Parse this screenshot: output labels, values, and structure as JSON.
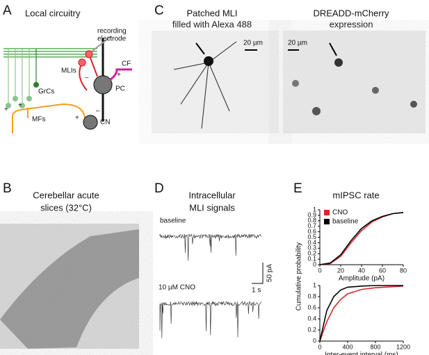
{
  "panel_a": {
    "letter": "A",
    "title": "Local circuitry",
    "recording": "recording",
    "electrode": "electrode",
    "mlis": "MLIs",
    "cf": "CF",
    "pc": "PC",
    "grcs": "GrCs",
    "mfs": "MFs",
    "cn": "CN",
    "plus": "+",
    "minus": "–"
  },
  "panel_b": {
    "letter": "B",
    "title": [
      "Cerebellar acute",
      "slices (32°C)"
    ]
  },
  "panel_c": {
    "letter": "C",
    "left_title": [
      "Patched MLI",
      "filled with Alexa 488"
    ],
    "right_title": [
      "DREADD-mCherry",
      "expression"
    ],
    "left_scale": "20 µm",
    "right_scale": "20 µm"
  },
  "panel_d": {
    "letter": "D",
    "title": [
      "Intracellular",
      "MLI signals"
    ],
    "trace_1": "baseline",
    "trace_2": "10 µM CNO",
    "scale_y": "50 pA",
    "scale_x": "1 s"
  },
  "panel_e": {
    "letter": "E"
  },
  "chart_data": [
    {
      "type": "line",
      "title": "mIPSC rate",
      "ylabel": "Cumulative probability",
      "xlabel": "Amplitude (pA)",
      "x": [
        0,
        10,
        20,
        30,
        40,
        50,
        60,
        70,
        80
      ],
      "series": [
        {
          "name": "CNO",
          "color": "#d7262b",
          "values": [
            0,
            0.02,
            0.15,
            0.4,
            0.62,
            0.78,
            0.87,
            0.93,
            0.95
          ]
        },
        {
          "name": "baseline",
          "color": "#000000",
          "values": [
            0,
            0.03,
            0.18,
            0.44,
            0.66,
            0.8,
            0.88,
            0.93,
            0.95
          ]
        }
      ],
      "xlim": [
        0,
        80
      ],
      "ylim": [
        0,
        1
      ],
      "xticks": [
        0,
        20,
        40,
        60,
        80
      ],
      "yticks": [
        0,
        0.1,
        0.2,
        0.3,
        0.4,
        0.5,
        0.6,
        0.7,
        0.8,
        0.9,
        1
      ]
    },
    {
      "type": "line",
      "xlabel": "Inter-event interval (ms)",
      "x": [
        0,
        100,
        200,
        300,
        400,
        600,
        800,
        1200
      ],
      "series": [
        {
          "color": "#d7262b",
          "values": [
            0,
            0.35,
            0.6,
            0.75,
            0.85,
            0.93,
            0.96,
            0.99
          ]
        },
        {
          "color": "#000000",
          "values": [
            0,
            0.55,
            0.8,
            0.92,
            0.97,
            0.99,
            1,
            1
          ]
        }
      ],
      "xlim": [
        0,
        1200
      ],
      "ylim": [
        0,
        1
      ],
      "xticks": [
        0,
        400,
        800,
        1200
      ],
      "yticks": [
        0,
        0.2,
        0.4,
        0.6,
        0.8,
        1
      ]
    }
  ]
}
